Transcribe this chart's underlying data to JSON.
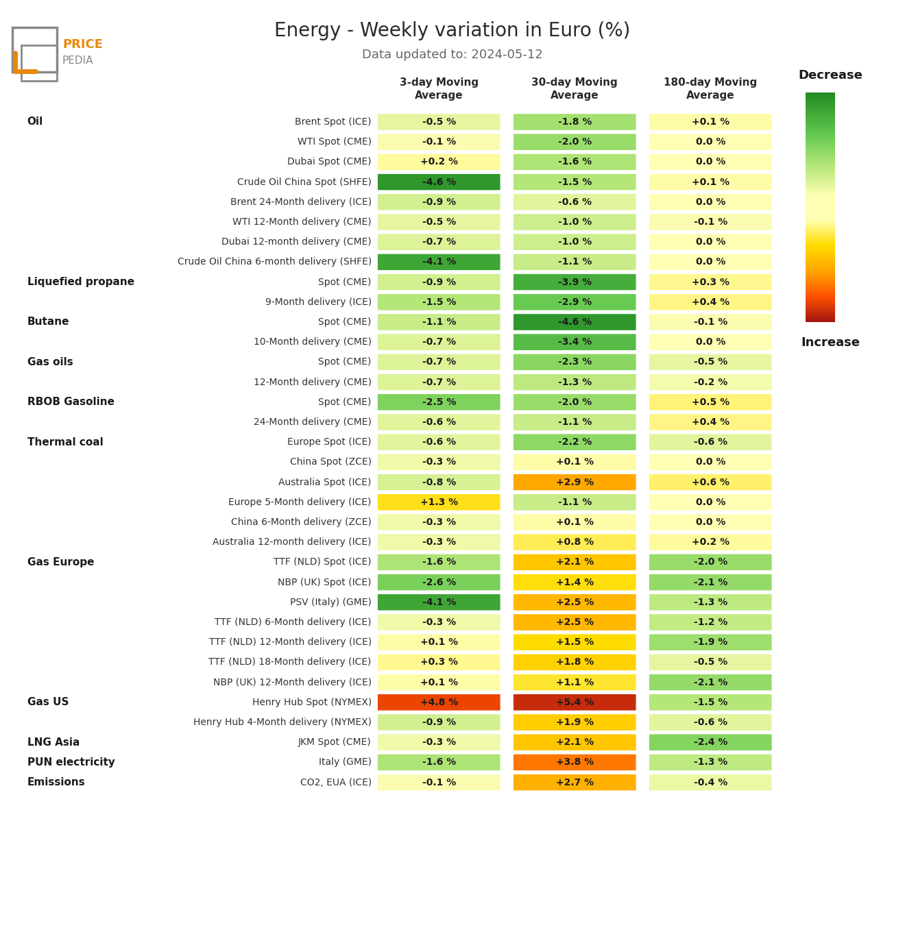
{
  "title": "Energy - Weekly variation in Euro (%)",
  "subtitle": "Data updated to: 2024-05-12",
  "col_headers": [
    "3-day Moving\nAverage",
    "30-day Moving\nAverage",
    "180-day Moving\nAverage"
  ],
  "rows": [
    {
      "category": "Oil",
      "label": "Brent Spot (ICE)",
      "values": [
        -0.5,
        -1.8,
        0.1
      ]
    },
    {
      "category": "",
      "label": "WTI Spot (CME)",
      "values": [
        -0.1,
        -2.0,
        0.0
      ]
    },
    {
      "category": "",
      "label": "Dubai Spot (CME)",
      "values": [
        0.2,
        -1.6,
        0.0
      ]
    },
    {
      "category": "",
      "label": "Crude Oil China Spot (SHFE)",
      "values": [
        -4.6,
        -1.5,
        0.1
      ]
    },
    {
      "category": "",
      "label": "Brent 24-Month delivery (ICE)",
      "values": [
        -0.9,
        -0.6,
        0.0
      ]
    },
    {
      "category": "",
      "label": "WTI 12-Month delivery (CME)",
      "values": [
        -0.5,
        -1.0,
        -0.1
      ]
    },
    {
      "category": "",
      "label": "Dubai 12-month delivery (CME)",
      "values": [
        -0.7,
        -1.0,
        0.0
      ]
    },
    {
      "category": "",
      "label": "Crude Oil China 6-month delivery (SHFE)",
      "values": [
        -4.1,
        -1.1,
        0.0
      ]
    },
    {
      "category": "Liquefied propane",
      "label": "Spot (CME)",
      "values": [
        -0.9,
        -3.9,
        0.3
      ]
    },
    {
      "category": "",
      "label": "9-Month delivery (ICE)",
      "values": [
        -1.5,
        -2.9,
        0.4
      ]
    },
    {
      "category": "Butane",
      "label": "Spot (CME)",
      "values": [
        -1.1,
        -4.6,
        -0.1
      ]
    },
    {
      "category": "",
      "label": "10-Month delivery (CME)",
      "values": [
        -0.7,
        -3.4,
        0.0
      ]
    },
    {
      "category": "Gas oils",
      "label": "Spot (CME)",
      "values": [
        -0.7,
        -2.3,
        -0.5
      ]
    },
    {
      "category": "",
      "label": "12-Month delivery (CME)",
      "values": [
        -0.7,
        -1.3,
        -0.2
      ]
    },
    {
      "category": "RBOB Gasoline",
      "label": "Spot (CME)",
      "values": [
        -2.5,
        -2.0,
        0.5
      ]
    },
    {
      "category": "",
      "label": "24-Month delivery (CME)",
      "values": [
        -0.6,
        -1.1,
        0.4
      ]
    },
    {
      "category": "Thermal coal",
      "label": "Europe Spot (ICE)",
      "values": [
        -0.6,
        -2.2,
        -0.6
      ]
    },
    {
      "category": "",
      "label": "China Spot (ZCE)",
      "values": [
        -0.3,
        0.1,
        0.0
      ]
    },
    {
      "category": "",
      "label": "Australia Spot (ICE)",
      "values": [
        -0.8,
        2.9,
        0.6
      ]
    },
    {
      "category": "",
      "label": "Europe 5-Month delivery (ICE)",
      "values": [
        1.3,
        -1.1,
        0.0
      ]
    },
    {
      "category": "",
      "label": "China 6-Month delivery (ZCE)",
      "values": [
        -0.3,
        0.1,
        0.0
      ]
    },
    {
      "category": "",
      "label": "Australia 12-month delivery (ICE)",
      "values": [
        -0.3,
        0.8,
        0.2
      ]
    },
    {
      "category": "Gas Europe",
      "label": "TTF (NLD) Spot (ICE)",
      "values": [
        -1.6,
        2.1,
        -2.0
      ]
    },
    {
      "category": "",
      "label": "NBP (UK) Spot (ICE)",
      "values": [
        -2.6,
        1.4,
        -2.1
      ]
    },
    {
      "category": "",
      "label": "PSV (Italy) (GME)",
      "values": [
        -4.1,
        2.5,
        -1.3
      ]
    },
    {
      "category": "",
      "label": "TTF (NLD) 6-Month delivery (ICE)",
      "values": [
        -0.3,
        2.5,
        -1.2
      ]
    },
    {
      "category": "",
      "label": "TTF (NLD) 12-Month delivery (ICE)",
      "values": [
        0.1,
        1.5,
        -1.9
      ]
    },
    {
      "category": "",
      "label": "TTF (NLD) 18-Month delivery (ICE)",
      "values": [
        0.3,
        1.8,
        -0.5
      ]
    },
    {
      "category": "",
      "label": "NBP (UK) 12-Month delivery (ICE)",
      "values": [
        0.1,
        1.1,
        -2.1
      ]
    },
    {
      "category": "Gas US",
      "label": "Henry Hub Spot (NYMEX)",
      "values": [
        4.8,
        5.4,
        -1.5
      ]
    },
    {
      "category": "",
      "label": "Henry Hub 4-Month delivery (NYMEX)",
      "values": [
        -0.9,
        1.9,
        -0.6
      ]
    },
    {
      "category": "LNG Asia",
      "label": "JKM Spot (CME)",
      "values": [
        -0.3,
        2.1,
        -2.4
      ]
    },
    {
      "category": "PUN electricity",
      "label": "Italy (GME)",
      "values": [
        -1.6,
        3.8,
        -1.3
      ]
    },
    {
      "category": "Emissions",
      "label": "CO2, EUA (ICE)",
      "values": [
        -0.1,
        2.7,
        -0.4
      ]
    }
  ],
  "colorbar_label_top": "Decrease",
  "colorbar_label_bottom": "Increase",
  "background_color": "#ffffff",
  "cell_text_color": "#1a1a1a",
  "category_color": "#1a1a1a",
  "title_color": "#2a2a2a",
  "subtitle_color": "#666666",
  "col_header_color": "#2a2a2a",
  "logo_orange": "#E8890C",
  "logo_gray": "#888888"
}
